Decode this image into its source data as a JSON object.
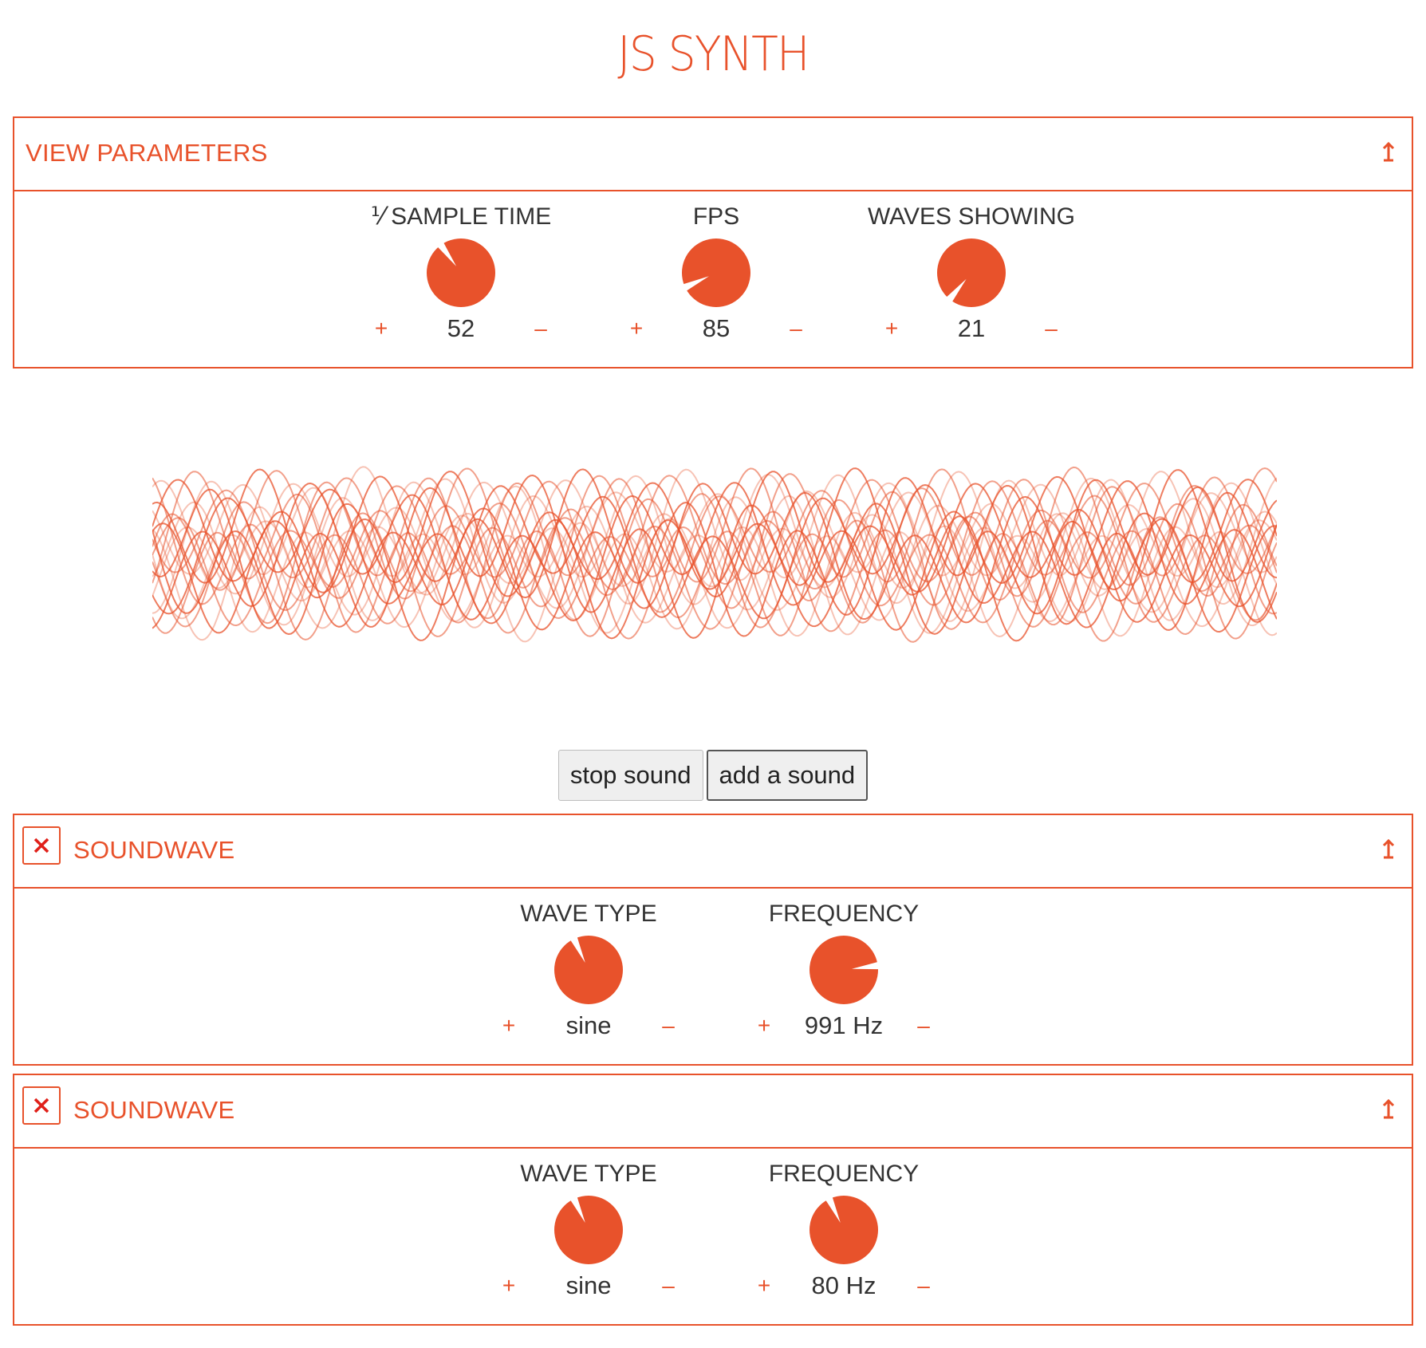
{
  "app": {
    "title": "JS SYNTH"
  },
  "colors": {
    "accent": "#e8522b",
    "text": "#333333",
    "remove": "#e0201a"
  },
  "view_parameters": {
    "title": "VIEW PARAMETERS",
    "collapse_icon": "collapse-arrow-icon",
    "controls": [
      {
        "label": "⅟ SAMPLE TIME",
        "value": "52",
        "plus": "+",
        "minus": "–",
        "knob_fraction": 0.4
      },
      {
        "label": "FPS",
        "value": "85",
        "plus": "+",
        "minus": "–",
        "knob_fraction": 0.18
      },
      {
        "label": "WAVES SHOWING",
        "value": "21",
        "plus": "+",
        "minus": "–",
        "knob_fraction": 0.11
      }
    ]
  },
  "wave_display": {
    "icon": "waveform-display",
    "waves_showing": 21
  },
  "buttons": {
    "stop_label": "stop sound",
    "add_label": "add a sound"
  },
  "soundwaves": [
    {
      "title": "SOUNDWAVE",
      "remove_icon": "close-x-icon",
      "collapse_icon": "collapse-arrow-icon",
      "controls": [
        {
          "label": "WAVE TYPE",
          "value": "sine",
          "plus": "+",
          "minus": "–",
          "knob_fraction": 0.43
        },
        {
          "label": "FREQUENCY",
          "value": "991 Hz",
          "plus": "+",
          "minus": "–",
          "knob_fraction": 0.73
        }
      ]
    },
    {
      "title": "SOUNDWAVE",
      "remove_icon": "close-x-icon",
      "collapse_icon": "collapse-arrow-icon",
      "controls": [
        {
          "label": "WAVE TYPE",
          "value": "sine",
          "plus": "+",
          "minus": "–",
          "knob_fraction": 0.43
        },
        {
          "label": "FREQUENCY",
          "value": "80 Hz",
          "plus": "+",
          "minus": "–",
          "knob_fraction": 0.43
        }
      ]
    }
  ]
}
